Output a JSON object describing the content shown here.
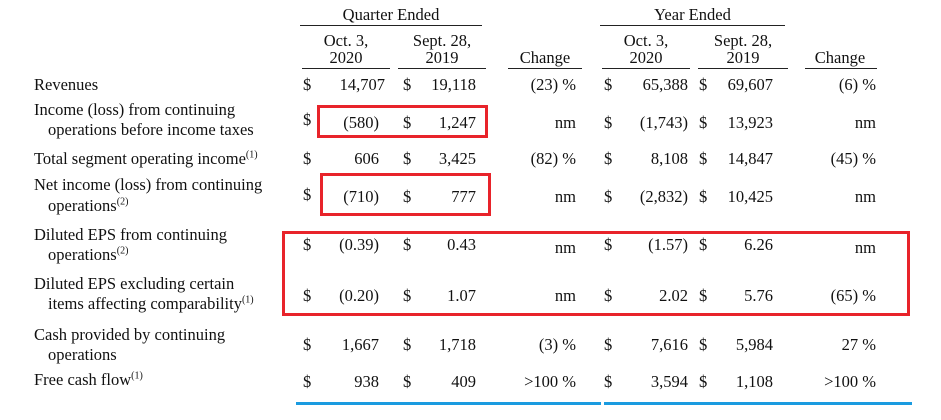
{
  "headers": {
    "quarter": "Quarter Ended",
    "year": "Year Ended",
    "q_col1_l1": "Oct. 3,",
    "q_col1_l2": "2020",
    "q_col2_l1": "Sept. 28,",
    "q_col2_l2": "2019",
    "y_col1_l1": "Oct. 3,",
    "y_col1_l2": "2020",
    "y_col2_l1": "Sept. 28,",
    "y_col2_l2": "2019",
    "change": "Change"
  },
  "rows": [
    {
      "label": [
        "Revenues"
      ],
      "q1": "14,707",
      "q2": "19,118",
      "qc": "(23) %",
      "y1": "65,388",
      "y2": "69,607",
      "yc": "(6)  %"
    },
    {
      "label": [
        "Income (loss) from continuing",
        "operations before income taxes"
      ],
      "q1": "(580)",
      "q2": "1,247",
      "qc": "nm",
      "y1": "(1,743)",
      "y2": "13,923",
      "yc": "nm"
    },
    {
      "label": [
        "Total segment operating income"
      ],
      "sup": "(1)",
      "q1": "606",
      "q2": "3,425",
      "qc": "(82) %",
      "y1": "8,108",
      "y2": "14,847",
      "yc": "(45) %"
    },
    {
      "label": [
        "Net income (loss) from continuing",
        "operations"
      ],
      "sup": "(2)",
      "q1": "(710)",
      "q2": "777",
      "qc": "nm",
      "y1": "(2,832)",
      "y2": "10,425",
      "yc": "nm"
    },
    {
      "label": [
        "Diluted EPS from continuing",
        "operations"
      ],
      "sup": "(2)",
      "q1": "(0.39)",
      "q2": "0.43",
      "qc": "nm",
      "y1": "(1.57)",
      "y2": "6.26",
      "yc": "nm"
    },
    {
      "label": [
        "Diluted EPS excluding certain",
        "items affecting comparability"
      ],
      "sup": "(1)",
      "q1": "(0.20)",
      "q2": "1.07",
      "qc": "nm",
      "y1": "2.02",
      "y2": "5.76",
      "yc": "(65) %"
    },
    {
      "label": [
        "Cash provided by continuing",
        "operations"
      ],
      "q1": "1,667",
      "q2": "1,718",
      "qc": "(3) %",
      "y1": "7,616",
      "y2": "5,984",
      "yc": "27  %"
    },
    {
      "label": [
        "Free cash flow"
      ],
      "sup": "(1)",
      "q1": "938",
      "q2": "409",
      "qc": ">100  %",
      "y1": "3,594",
      "y2": "1,108",
      "yc": ">100  %"
    }
  ],
  "dollar": "$",
  "colors": {
    "highlight_box": "#e8232a",
    "underline": "#1a9be0"
  }
}
